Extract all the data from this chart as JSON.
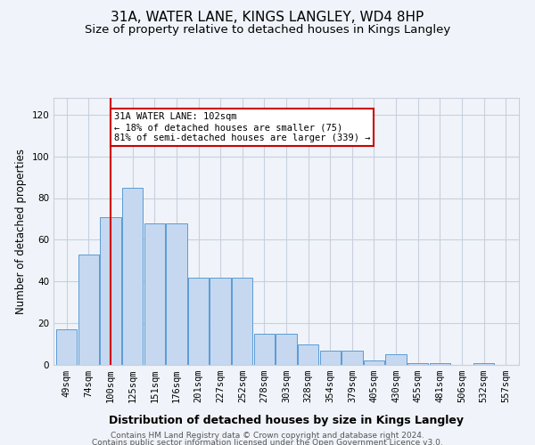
{
  "title": "31A, WATER LANE, KINGS LANGLEY, WD4 8HP",
  "subtitle": "Size of property relative to detached houses in Kings Langley",
  "xlabel": "Distribution of detached houses by size in Kings Langley",
  "ylabel": "Number of detached properties",
  "footer1": "Contains HM Land Registry data © Crown copyright and database right 2024.",
  "footer2": "Contains public sector information licensed under the Open Government Licence v3.0.",
  "categories": [
    "49sqm",
    "74sqm",
    "100sqm",
    "125sqm",
    "151sqm",
    "176sqm",
    "201sqm",
    "227sqm",
    "252sqm",
    "278sqm",
    "303sqm",
    "328sqm",
    "354sqm",
    "379sqm",
    "405sqm",
    "430sqm",
    "455sqm",
    "481sqm",
    "506sqm",
    "532sqm",
    "557sqm"
  ],
  "values": [
    17,
    53,
    71,
    85,
    68,
    68,
    42,
    42,
    42,
    15,
    15,
    10,
    7,
    7,
    2,
    5,
    1,
    1,
    0,
    1,
    0
  ],
  "bar_color": "#c5d8f0",
  "bar_edge_color": "#5b9bd5",
  "vline_x": 2,
  "vline_color": "#cc0000",
  "annotation_text": "31A WATER LANE: 102sqm\n← 18% of detached houses are smaller (75)\n81% of semi-detached houses are larger (339) →",
  "annotation_box_color": "#ffffff",
  "annotation_box_edge": "#cc0000",
  "ylim": [
    0,
    128
  ],
  "yticks": [
    0,
    20,
    40,
    60,
    80,
    100,
    120
  ],
  "background_color": "#f0f4fa",
  "grid_color": "#c8d0dc",
  "title_fontsize": 11,
  "subtitle_fontsize": 9.5,
  "xlabel_fontsize": 9,
  "ylabel_fontsize": 8.5,
  "tick_fontsize": 7.5,
  "footer_fontsize": 6.5
}
